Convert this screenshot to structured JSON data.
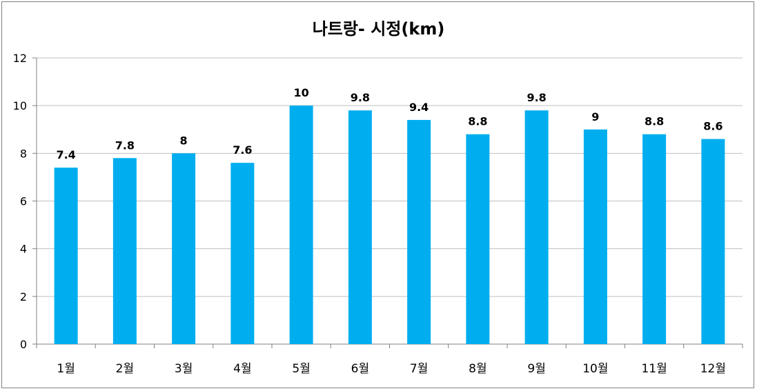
{
  "chart_data": {
    "type": "bar",
    "title": "나트랑- 시정(km)",
    "xlabel": "",
    "ylabel": "",
    "categories": [
      "1월",
      "2월",
      "3월",
      "4월",
      "5월",
      "6월",
      "7월",
      "8월",
      "9월",
      "10월",
      "11월",
      "12월"
    ],
    "values": [
      7.4,
      7.8,
      8,
      7.6,
      10,
      9.8,
      9.4,
      8.8,
      9.8,
      9,
      8.8,
      8.6
    ],
    "data_labels": [
      "7.4",
      "7.8",
      "8",
      "7.6",
      "10",
      "9.8",
      "9.4",
      "8.8",
      "9.8",
      "9",
      "8.8",
      "8.6"
    ],
    "ylim": [
      0,
      12
    ],
    "yticks": [
      "0",
      "2",
      "4",
      "6",
      "8",
      "10",
      "12"
    ],
    "grid": true,
    "legend": "none",
    "bar_color": "#00AEEF",
    "grid_color": "#BFBFBF"
  }
}
